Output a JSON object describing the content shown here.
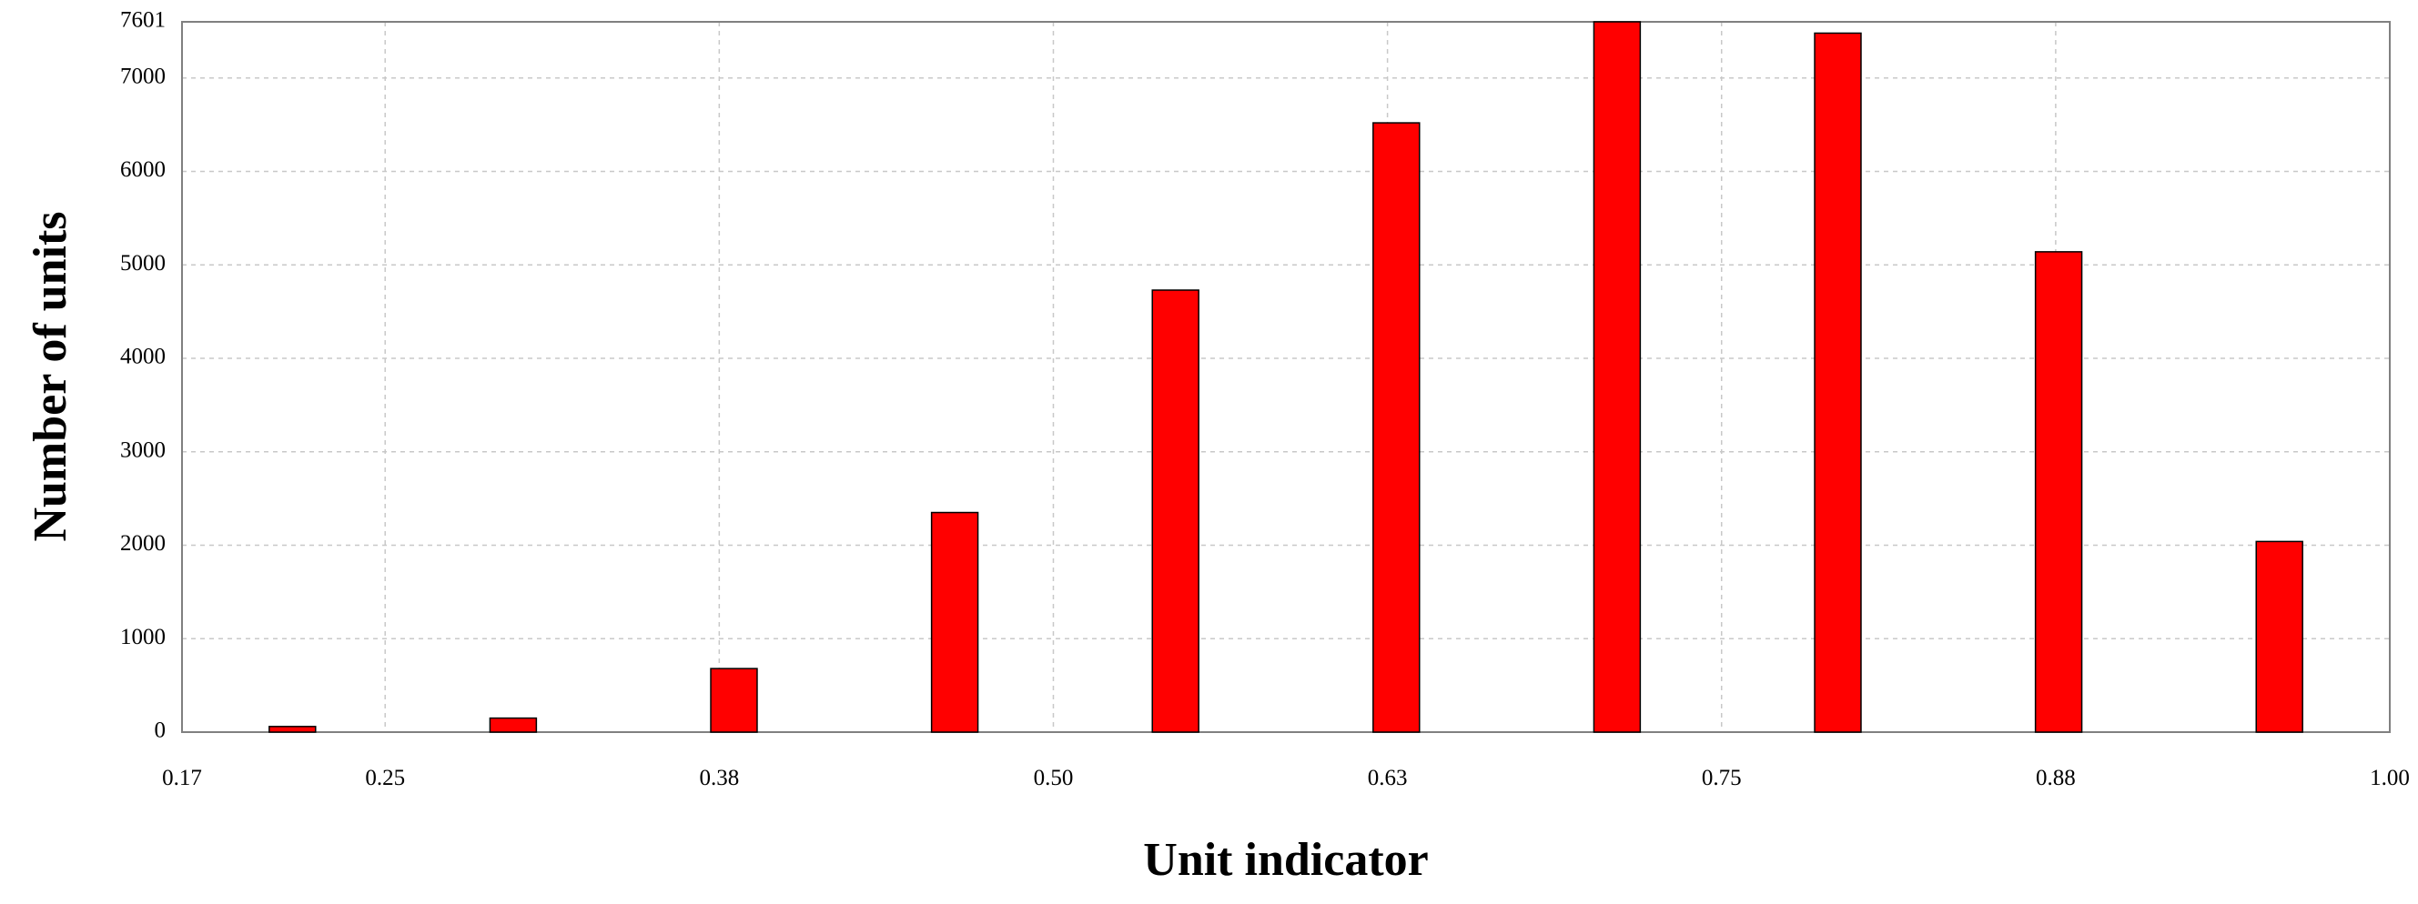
{
  "chart_data": {
    "type": "bar",
    "x_label": "Unit indicator",
    "y_label": "Number of units",
    "x": [
      0.2153,
      0.2979,
      0.3805,
      0.4631,
      0.5457,
      0.6283,
      0.7109,
      0.7935,
      0.8761,
      0.9587
    ],
    "values": [
      60,
      150,
      680,
      2350,
      4730,
      6520,
      7601,
      7480,
      5140,
      2040
    ],
    "color": "#ff0000",
    "xlim": [
      0.174,
      1
    ],
    "xticks": [
      {
        "value": 0.174,
        "label": "0.17"
      },
      0.25,
      {
        "value": 0.375,
        "label": "0.38"
      },
      {
        "value": 0.5,
        "label": "0.50"
      },
      {
        "value": 0.625,
        "label": "0.63"
      },
      0.75,
      {
        "value": 0.875,
        "label": "0.88"
      },
      {
        "value": 1,
        "label": "1.00"
      }
    ],
    "ylim": [
      0,
      7601
    ],
    "yticks": [
      0,
      1000,
      2000,
      3000,
      4000,
      5000,
      6000,
      7000,
      7601
    ],
    "grid": true
  }
}
